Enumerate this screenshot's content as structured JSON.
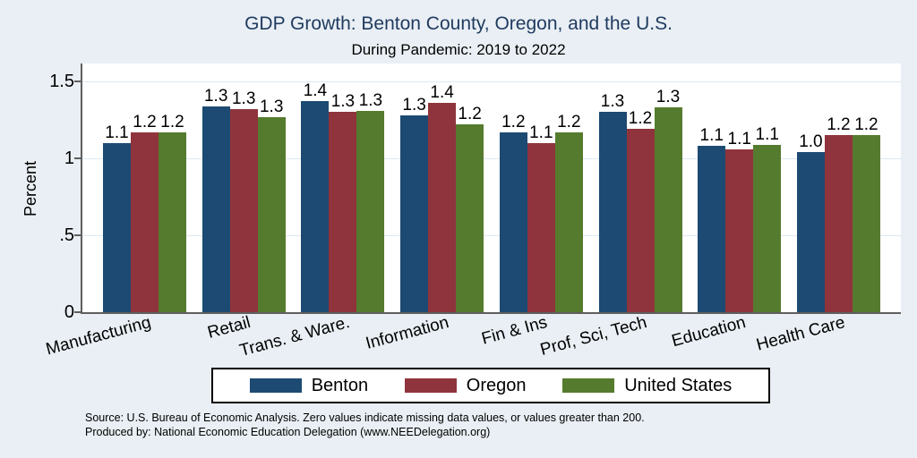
{
  "title": "GDP Growth: Benton County, Oregon, and the U.S.",
  "subtitle": "During Pandemic: 2019 to 2022",
  "source": {
    "line1": "Source: U.S. Bureau of Economic Analysis. Zero values indicate missing data values, or values greater than 200.",
    "line2": "Produced by: National Economic Education Delegation (www.NEEDelegation.org)"
  },
  "colors": {
    "background": "#e9eff4",
    "plot_background": "#ffffff",
    "axis": "#5f5f5f",
    "gridline": "#dde9f1",
    "title_text": "#1f3a5f",
    "benton": "#1d4a72",
    "oregon": "#8f343c",
    "united_states": "#557b2e"
  },
  "chart_data": {
    "type": "bar",
    "title": "GDP Growth: Benton County, Oregon, and the U.S.",
    "subtitle": "During Pandemic: 2019 to 2022",
    "xlabel": "",
    "ylabel": "Percent",
    "ylim": [
      0,
      1.616
    ],
    "grid": "horizontal",
    "legend_position": "bottom",
    "yticks": [
      {
        "value": 0,
        "label": "0"
      },
      {
        "value": 0.5,
        "label": ".5"
      },
      {
        "value": 1,
        "label": "1"
      },
      {
        "value": 1.5,
        "label": "1.5"
      }
    ],
    "categories": [
      "Manufacturing",
      "Retail",
      "Trans. & Ware.",
      "Information",
      "Fin & Ins",
      "Prof, Sci, Tech",
      "Education",
      "Health Care"
    ],
    "series": [
      {
        "name": "Benton",
        "color": "#1d4a72",
        "values": [
          1.1,
          1.34,
          1.37,
          1.28,
          1.17,
          1.3,
          1.08,
          1.04
        ],
        "labels": [
          "1.1",
          "1.3",
          "1.4",
          "1.3",
          "1.2",
          "1.3",
          "1.1",
          "1.0"
        ]
      },
      {
        "name": "Oregon",
        "color": "#8f343c",
        "values": [
          1.17,
          1.32,
          1.3,
          1.36,
          1.1,
          1.19,
          1.06,
          1.15
        ],
        "labels": [
          "1.2",
          "1.3",
          "1.3",
          "1.4",
          "1.1",
          "1.2",
          "1.1",
          "1.2"
        ]
      },
      {
        "name": "United States",
        "color": "#557b2e",
        "values": [
          1.17,
          1.27,
          1.31,
          1.22,
          1.17,
          1.33,
          1.09,
          1.15
        ],
        "labels": [
          "1.2",
          "1.3",
          "1.3",
          "1.2",
          "1.2",
          "1.3",
          "1.1",
          "1.2"
        ]
      }
    ]
  }
}
